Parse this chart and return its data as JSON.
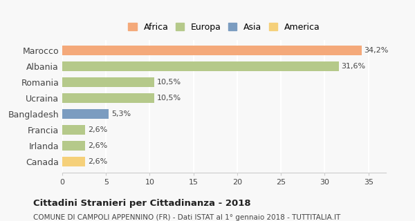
{
  "categories": [
    "Marocco",
    "Albania",
    "Romania",
    "Ucraina",
    "Bangladesh",
    "Francia",
    "Irlanda",
    "Canada"
  ],
  "values": [
    34.2,
    31.6,
    10.5,
    10.5,
    5.3,
    2.6,
    2.6,
    2.6
  ],
  "labels": [
    "34,2%",
    "31,6%",
    "10,5%",
    "10,5%",
    "5,3%",
    "2,6%",
    "2,6%",
    "2,6%"
  ],
  "colors": [
    "#F4A97A",
    "#B5C98A",
    "#B5C98A",
    "#B5C98A",
    "#7B9CC0",
    "#B5C98A",
    "#B5C98A",
    "#F5D07A"
  ],
  "legend_labels": [
    "Africa",
    "Europa",
    "Asia",
    "America"
  ],
  "legend_colors": [
    "#F4A97A",
    "#B5C98A",
    "#7B9CC0",
    "#F5D07A"
  ],
  "xlim": [
    0,
    37
  ],
  "xticks": [
    0,
    5,
    10,
    15,
    20,
    25,
    30,
    35
  ],
  "title": "Cittadini Stranieri per Cittadinanza - 2018",
  "subtitle": "COMUNE DI CAMPOLI APPENNINO (FR) - Dati ISTAT al 1° gennaio 2018 - TUTTITALIA.IT",
  "bg_color": "#f8f8f8",
  "grid_color": "#ffffff",
  "bar_height": 0.6
}
